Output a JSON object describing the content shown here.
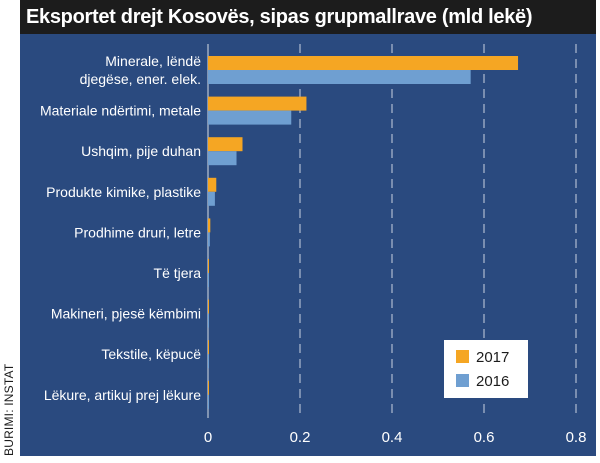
{
  "source_label": "BURIMI: INSTAT",
  "chart_data": {
    "type": "bar",
    "orientation": "horizontal",
    "title": "Eksportet drejt Kosovës, sipas grupmallrave (mld lekë)",
    "categories": [
      [
        "Minerale, lëndë",
        "djegëse, ener. elek."
      ],
      [
        "Materiale ndërtimi, metale"
      ],
      [
        "Ushqim, pije duhan"
      ],
      [
        "Produkte kimike, plastike"
      ],
      [
        "Prodhime druri, letre"
      ],
      [
        "Të tjera"
      ],
      [
        "Makineri, pjesë këmbimi"
      ],
      [
        "Tekstile, këpucë"
      ],
      [
        "Lëkure, artikuj prej lëkure"
      ]
    ],
    "series": [
      {
        "name": "2017",
        "color": "#f5a623",
        "values": [
          0.674,
          0.214,
          0.075,
          0.018,
          0.005,
          0.002,
          0.002,
          0.002,
          0.002
        ]
      },
      {
        "name": "2016",
        "color": "#6f9fd1",
        "values": [
          0.571,
          0.181,
          0.062,
          0.015,
          0.004,
          0.002,
          0.002,
          0.002,
          0.002
        ]
      }
    ],
    "xlim": [
      0,
      0.8
    ],
    "xticks": [
      "0",
      "0.2",
      "0.4",
      "0.6",
      "0.8"
    ],
    "grid": "vertical-dashed",
    "legend_position": "bottom-right"
  }
}
